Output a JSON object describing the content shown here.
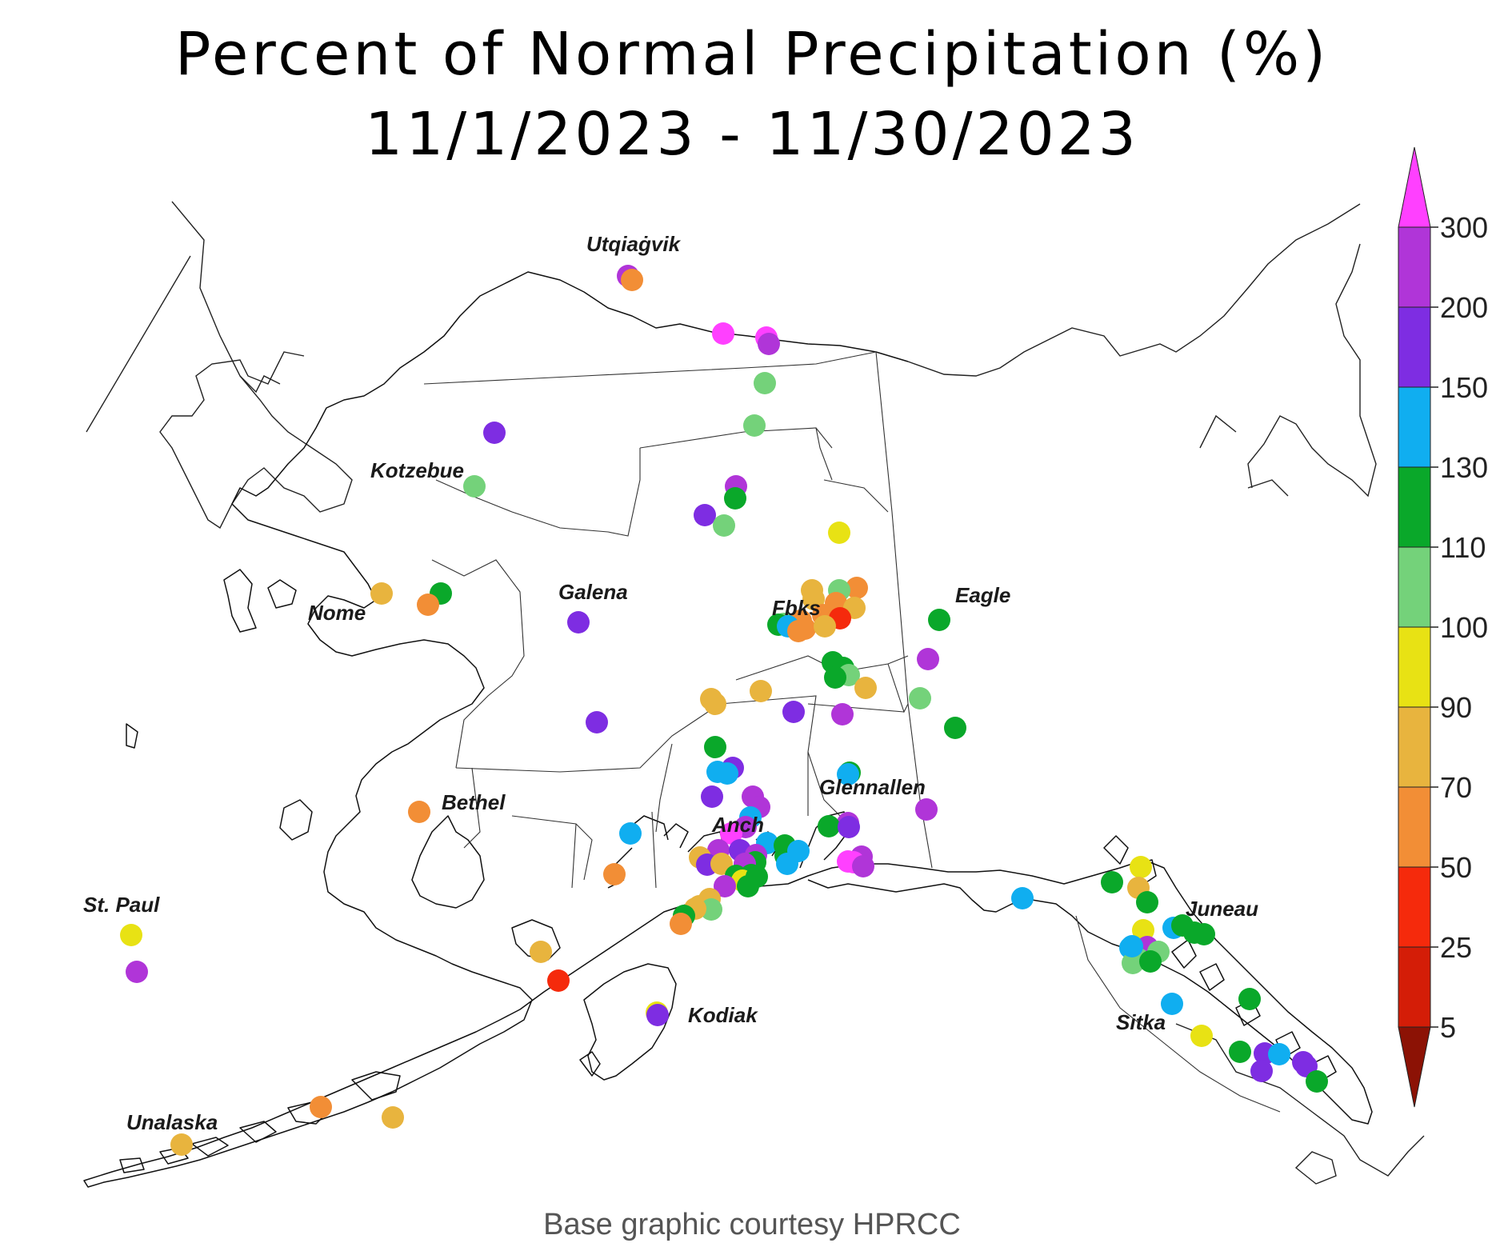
{
  "title": {
    "line1": "Percent of Normal Precipitation (%)",
    "line2": "11/1/2023 - 11/30/2023"
  },
  "credit": "Base graphic courtesy HPRCC",
  "places": [
    {
      "id": "utqiagvik",
      "name": "Utqiaġvik"
    },
    {
      "id": "kotzebue",
      "name": "Kotzebue"
    },
    {
      "id": "nome",
      "name": "Nome"
    },
    {
      "id": "galena",
      "name": "Galena"
    },
    {
      "id": "fbks",
      "name": "Fbks"
    },
    {
      "id": "eagle",
      "name": "Eagle"
    },
    {
      "id": "bethel",
      "name": "Bethel"
    },
    {
      "id": "glennallen",
      "name": "Glennallen"
    },
    {
      "id": "anch",
      "name": "Anch"
    },
    {
      "id": "st-paul",
      "name": "St. Paul"
    },
    {
      "id": "juneau",
      "name": "Juneau"
    },
    {
      "id": "kodiak",
      "name": "Kodiak"
    },
    {
      "id": "sitka",
      "name": "Sitka"
    },
    {
      "id": "unalaska",
      "name": "Unalaska"
    }
  ],
  "legend": {
    "ticks": [
      "300",
      "200",
      "150",
      "130",
      "110",
      "100",
      "90",
      "70",
      "50",
      "25",
      "5"
    ],
    "bins": [
      {
        "range": ">300",
        "color": "#ff40ff"
      },
      {
        "range": "200-300",
        "color": "#b035d8"
      },
      {
        "range": "150-200",
        "color": "#7e2de2"
      },
      {
        "range": "130-150",
        "color": "#10aef0"
      },
      {
        "range": "110-130",
        "color": "#0aa82a"
      },
      {
        "range": "100-110",
        "color": "#74d27a"
      },
      {
        "range": "90-100",
        "color": "#e8e214"
      },
      {
        "range": "70-90",
        "color": "#e8b43e"
      },
      {
        "range": "50-70",
        "color": "#f28e36"
      },
      {
        "range": "25-50",
        "color": "#f52a0c"
      },
      {
        "range": "5-25",
        "color": "#d41d07"
      },
      {
        "range": "<5",
        "color": "#8c1205"
      }
    ]
  }
}
